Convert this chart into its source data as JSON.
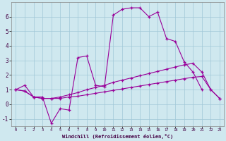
{
  "xlabel": "Windchill (Refroidissement éolien,°C)",
  "background_color": "#cfe8ef",
  "grid_color": "#a0c8d8",
  "line_color": "#990099",
  "hours": [
    0,
    1,
    2,
    3,
    4,
    5,
    6,
    7,
    8,
    9,
    10,
    11,
    12,
    13,
    14,
    15,
    16,
    17,
    18,
    19,
    20,
    21,
    22,
    23
  ],
  "line_main": [
    1.0,
    1.3,
    0.5,
    0.5,
    -1.3,
    -0.3,
    -0.4,
    3.2,
    3.3,
    1.3,
    1.2,
    6.1,
    6.5,
    6.6,
    6.6,
    6.0,
    6.3,
    4.5,
    4.3,
    2.9,
    2.2,
    1.0,
    null,
    null
  ],
  "line_low": [
    1.0,
    0.9,
    0.5,
    0.4,
    0.4,
    0.4,
    0.5,
    0.55,
    0.65,
    0.75,
    0.85,
    0.95,
    1.05,
    1.15,
    1.25,
    1.35,
    1.45,
    1.55,
    1.65,
    1.75,
    1.85,
    1.9,
    1.0,
    0.4
  ],
  "line_high": [
    1.0,
    0.9,
    0.5,
    0.4,
    0.4,
    0.5,
    0.65,
    0.8,
    1.0,
    1.15,
    1.3,
    1.5,
    1.65,
    1.8,
    1.95,
    2.1,
    2.25,
    2.4,
    2.55,
    2.7,
    2.8,
    2.2,
    1.0,
    0.4
  ],
  "ylim": [
    -1.5,
    7.0
  ],
  "xlim": [
    -0.5,
    23.5
  ],
  "yticks": [
    -1,
    0,
    1,
    2,
    3,
    4,
    5,
    6
  ],
  "xticks": [
    0,
    1,
    2,
    3,
    4,
    5,
    6,
    7,
    8,
    9,
    10,
    11,
    12,
    13,
    14,
    15,
    16,
    17,
    18,
    19,
    20,
    21,
    22,
    23
  ]
}
